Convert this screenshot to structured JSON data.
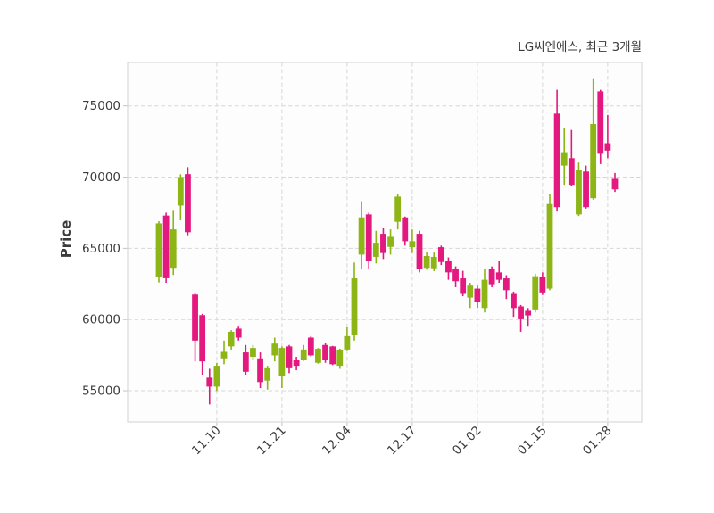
{
  "title": "LG씨엔에스, 최근 3개월",
  "chart_data": {
    "type": "candlestick",
    "title": "LG씨엔에스, 최근 3개월",
    "ylabel": "Price",
    "xlabel": "",
    "grid": true,
    "ylim": [
      52810,
      78050
    ],
    "y_ticks": [
      55000,
      60000,
      65000,
      70000,
      75000
    ],
    "x_tick_labels": [
      "11.10",
      "11.21",
      "12.04",
      "12.17",
      "01.02",
      "01.15",
      "01.28"
    ],
    "x_tick_indices": [
      8,
      17,
      26,
      35,
      44,
      53,
      62
    ],
    "colors": {
      "up": "#8CB515",
      "down": "#E3197F",
      "grid": "#d6d6d6",
      "spine": "#d9d9d9",
      "tick": "#c2c2c2",
      "text": "#3b3b3b",
      "plot_bg": "#fdfdfd",
      "fig_bg": "#ffffff"
    },
    "candles_format": "open,high,low,close",
    "candles": [
      [
        63000,
        66900,
        62600,
        66750
      ],
      [
        67300,
        67500,
        62580,
        62900
      ],
      [
        63630,
        67690,
        63130,
        66330
      ],
      [
        68000,
        70200,
        66960,
        70000
      ],
      [
        70210,
        70700,
        65920,
        66130
      ],
      [
        61750,
        61900,
        57060,
        58520
      ],
      [
        60310,
        60400,
        56130,
        57060
      ],
      [
        55920,
        56540,
        54040,
        55290
      ],
      [
        55290,
        56960,
        54980,
        56750
      ],
      [
        57270,
        58520,
        56860,
        57790
      ],
      [
        58110,
        59250,
        57890,
        59140
      ],
      [
        59360,
        59560,
        58520,
        58730
      ],
      [
        57690,
        58210,
        56130,
        56330
      ],
      [
        57380,
        58210,
        57170,
        58000
      ],
      [
        57270,
        57690,
        55190,
        55610
      ],
      [
        55710,
        56750,
        55080,
        56640
      ],
      [
        57480,
        58730,
        57060,
        58310
      ],
      [
        56020,
        58110,
        55190,
        58000
      ],
      [
        58110,
        58210,
        56230,
        56640
      ],
      [
        57170,
        57380,
        56440,
        56750
      ],
      [
        57170,
        58210,
        57100,
        57890
      ],
      [
        58730,
        58830,
        57400,
        57480
      ],
      [
        56960,
        58000,
        56900,
        57940
      ],
      [
        58210,
        58360,
        56960,
        57170
      ],
      [
        58110,
        58150,
        56800,
        56860
      ],
      [
        56750,
        57950,
        56540,
        57890
      ],
      [
        57890,
        59460,
        57850,
        58830
      ],
      [
        58940,
        64000,
        58520,
        62890
      ],
      [
        64560,
        68310,
        63520,
        67170
      ],
      [
        67380,
        67500,
        63520,
        64140
      ],
      [
        64400,
        66230,
        63940,
        65390
      ],
      [
        66020,
        66440,
        64250,
        64670
      ],
      [
        65100,
        66330,
        64560,
        65810
      ],
      [
        66860,
        68830,
        66330,
        68630
      ],
      [
        67170,
        67230,
        65190,
        65500
      ],
      [
        65080,
        66330,
        64670,
        65500
      ],
      [
        66020,
        66230,
        63310,
        63520
      ],
      [
        63630,
        64770,
        63500,
        64460
      ],
      [
        63600,
        64700,
        63400,
        64400
      ],
      [
        65080,
        65190,
        63830,
        64040
      ],
      [
        64140,
        64360,
        62790,
        63310
      ],
      [
        63520,
        63730,
        62270,
        62690
      ],
      [
        62890,
        63420,
        61640,
        61860
      ],
      [
        61540,
        62580,
        60810,
        62380
      ],
      [
        62170,
        62380,
        60810,
        61230
      ],
      [
        60810,
        63520,
        60500,
        62790
      ],
      [
        63520,
        63730,
        62270,
        62480
      ],
      [
        63310,
        64140,
        62580,
        62790
      ],
      [
        62890,
        63110,
        61440,
        62060
      ],
      [
        61860,
        61960,
        60190,
        60810
      ],
      [
        60920,
        61020,
        59140,
        60080
      ],
      [
        60610,
        60810,
        59560,
        60290
      ],
      [
        60710,
        63210,
        60500,
        63040
      ],
      [
        63010,
        63310,
        61720,
        61900
      ],
      [
        62170,
        68830,
        62060,
        68110
      ],
      [
        74460,
        76130,
        67580,
        67890
      ],
      [
        70810,
        73420,
        69460,
        71750
      ],
      [
        71330,
        73310,
        69360,
        69460
      ],
      [
        67380,
        71020,
        67270,
        70500
      ],
      [
        70390,
        70810,
        67790,
        67890
      ],
      [
        68520,
        76950,
        68420,
        73730
      ],
      [
        76020,
        76130,
        70920,
        71640
      ],
      [
        72380,
        74360,
        71330,
        71860
      ],
      [
        69880,
        70290,
        68960,
        69140
      ]
    ]
  }
}
